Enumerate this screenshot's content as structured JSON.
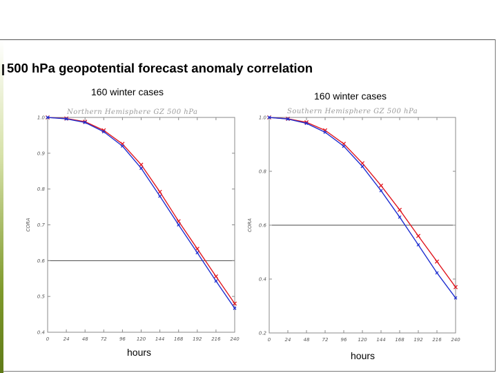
{
  "main_title": "500 hPa geopotential forecast anomaly correlation",
  "colors": {
    "model_red": "#e0161e",
    "model_blue": "#1f2fd0",
    "ref_line": "#444444"
  },
  "chart_data": [
    {
      "type": "line",
      "subtitle": "160 winter cases",
      "title": "Northern Hemisphere   GZ 500 hPa",
      "ylabel": "CORA",
      "xlabel": "hours",
      "x": [
        0,
        24,
        48,
        72,
        96,
        120,
        144,
        168,
        192,
        216,
        240
      ],
      "xlim": [
        0,
        240
      ],
      "ylim": [
        0.4,
        1.0
      ],
      "xticks": [
        "0",
        "24",
        "48",
        "72",
        "96",
        "120",
        "144",
        "168",
        "192",
        "216",
        "240"
      ],
      "yticks": [
        "0.4",
        "0.5",
        "0.6",
        "0.7",
        "0.8",
        "0.9",
        "1.0"
      ],
      "ytick_values": [
        0.4,
        0.5,
        0.6,
        0.7,
        0.8,
        0.9,
        1.0
      ],
      "reference_line": 0.6,
      "series": [
        {
          "name": "red",
          "values": [
            1.0,
            0.997,
            0.988,
            0.964,
            0.926,
            0.868,
            0.792,
            0.71,
            0.633,
            0.556,
            0.48
          ]
        },
        {
          "name": "blue",
          "values": [
            1.0,
            0.996,
            0.986,
            0.96,
            0.92,
            0.858,
            0.78,
            0.7,
            0.622,
            0.543,
            0.467
          ]
        }
      ]
    },
    {
      "type": "line",
      "subtitle": "160 winter cases",
      "title": "Southern Hemisphere   GZ 500 hPa",
      "ylabel": "CORA",
      "xlabel": "hours",
      "x": [
        0,
        24,
        48,
        72,
        96,
        120,
        144,
        168,
        192,
        216,
        240
      ],
      "xlim": [
        0,
        240
      ],
      "ylim": [
        0.2,
        1.0
      ],
      "xticks": [
        "0",
        "24",
        "48",
        "72",
        "96",
        "120",
        "144",
        "168",
        "192",
        "216",
        "240"
      ],
      "yticks": [
        "0.2",
        "0.4",
        "0.6",
        "0.8",
        "1.0"
      ],
      "ytick_values": [
        0.2,
        0.4,
        0.6,
        0.8,
        1.0
      ],
      "reference_line": 0.6,
      "series": [
        {
          "name": "red",
          "values": [
            1.0,
            0.995,
            0.982,
            0.952,
            0.902,
            0.83,
            0.747,
            0.657,
            0.56,
            0.465,
            0.37
          ]
        },
        {
          "name": "blue",
          "values": [
            1.0,
            0.994,
            0.978,
            0.945,
            0.893,
            0.818,
            0.728,
            0.63,
            0.527,
            0.423,
            0.33
          ]
        }
      ]
    }
  ]
}
